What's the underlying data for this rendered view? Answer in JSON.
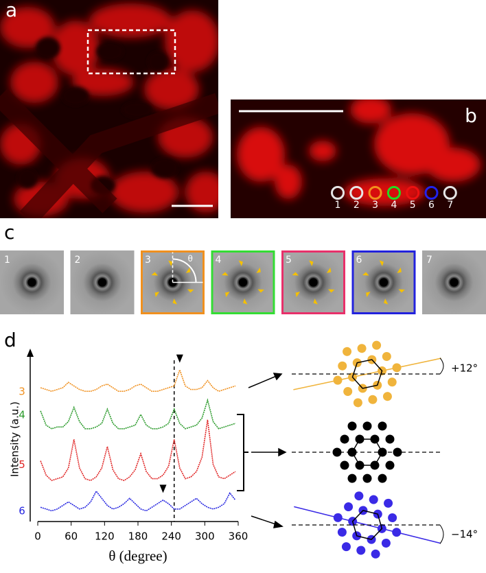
{
  "panel_a": {
    "label": "a"
  },
  "panel_b": {
    "label": "b",
    "markers": [
      {
        "label": "1",
        "color": "#e6e6e6"
      },
      {
        "label": "2",
        "color": "#e6e6e6"
      },
      {
        "label": "3",
        "color": "#f0901e"
      },
      {
        "label": "4",
        "color": "#22dd22"
      },
      {
        "label": "5",
        "color": "#ee1111"
      },
      {
        "label": "6",
        "color": "#2222ee"
      },
      {
        "label": "7",
        "color": "#e6e6e6"
      }
    ]
  },
  "panel_c": {
    "label": "c",
    "angle_label": "θ",
    "images": [
      {
        "label": "1"
      },
      {
        "label": "2"
      },
      {
        "label": "3",
        "border": "#f0901e"
      },
      {
        "label": "4",
        "border": "#33dd33"
      },
      {
        "label": "5",
        "border": "#e8306a"
      },
      {
        "label": "6",
        "border": "#2222dd"
      },
      {
        "label": "7"
      }
    ]
  },
  "chart_data": {
    "type": "line",
    "label": "d",
    "ylabel": "Intensity (a.u.)",
    "xlabel": "θ (degree)",
    "xlim": [
      0,
      360
    ],
    "xticks": [
      0,
      60,
      120,
      180,
      240,
      300,
      360
    ],
    "ylim": [
      0,
      10
    ],
    "reference_x": 245,
    "peak_markers": [
      {
        "x": 255,
        "y": 8.9
      },
      {
        "x": 225,
        "y": 1.6
      }
    ],
    "x": [
      5,
      15,
      25,
      35,
      45,
      55,
      65,
      75,
      85,
      95,
      105,
      115,
      125,
      135,
      145,
      155,
      165,
      175,
      185,
      195,
      205,
      215,
      225,
      235,
      245,
      255,
      265,
      275,
      285,
      295,
      305,
      315,
      325,
      335,
      345,
      355
    ],
    "series": [
      {
        "name": "3",
        "color": "#f0901e",
        "values": [
          7.5,
          7.4,
          7.3,
          7.4,
          7.5,
          7.8,
          7.6,
          7.4,
          7.3,
          7.3,
          7.4,
          7.6,
          7.7,
          7.5,
          7.3,
          7.3,
          7.4,
          7.6,
          7.7,
          7.5,
          7.3,
          7.3,
          7.4,
          7.5,
          7.6,
          8.5,
          7.6,
          7.4,
          7.4,
          7.5,
          7.9,
          7.5,
          7.3,
          7.4,
          7.5,
          7.6
        ]
      },
      {
        "name": "4",
        "color": "#2a9a2a",
        "values": [
          6.2,
          5.4,
          5.2,
          5.3,
          5.3,
          5.6,
          6.4,
          5.6,
          5.2,
          5.2,
          5.3,
          5.5,
          6.3,
          5.5,
          5.2,
          5.2,
          5.3,
          5.4,
          6.0,
          5.4,
          5.2,
          5.2,
          5.3,
          5.5,
          6.3,
          5.5,
          5.2,
          5.3,
          5.4,
          5.8,
          6.8,
          5.6,
          5.2,
          5.3,
          5.4,
          5.5
        ]
      },
      {
        "name": "5",
        "color": "#e02424",
        "values": [
          3.4,
          2.6,
          2.3,
          2.4,
          2.5,
          3.0,
          4.6,
          3.0,
          2.4,
          2.3,
          2.5,
          3.0,
          4.2,
          2.9,
          2.4,
          2.3,
          2.5,
          2.9,
          3.8,
          2.8,
          2.4,
          2.4,
          2.6,
          3.1,
          4.6,
          3.0,
          2.4,
          2.5,
          2.8,
          3.6,
          5.7,
          3.2,
          2.5,
          2.4,
          2.6,
          2.8
        ]
      },
      {
        "name": "6",
        "color": "#2424e0",
        "values": [
          0.8,
          0.7,
          0.6,
          0.7,
          0.9,
          1.1,
          0.9,
          0.7,
          0.8,
          1.1,
          1.7,
          1.3,
          0.9,
          0.7,
          0.8,
          1.0,
          1.3,
          1.0,
          0.7,
          0.6,
          0.8,
          1.0,
          1.2,
          1.0,
          0.7,
          0.7,
          0.9,
          1.1,
          1.3,
          1.0,
          0.8,
          0.7,
          0.8,
          1.0,
          1.6,
          1.2
        ]
      }
    ]
  },
  "lattices": [
    {
      "color": "#f0b43c",
      "rotation": 12,
      "label": "+12°"
    },
    {
      "color": "#000000",
      "rotation": 0
    },
    {
      "color": "#3a2ae6",
      "rotation": -14,
      "label": "−14°"
    }
  ]
}
